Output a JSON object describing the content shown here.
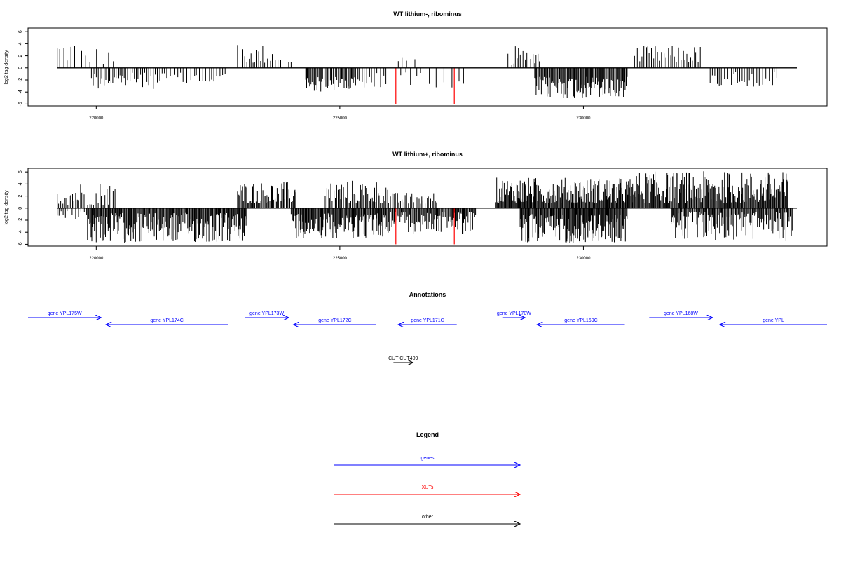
{
  "colors": {
    "gene": "#0000ff",
    "xut": "#ff0000",
    "other": "#000000",
    "bar": "#000000",
    "highlight": "#ff0000"
  },
  "chart_data": [
    {
      "type": "bar",
      "title": "WT lithium-, ribominus",
      "ylabel": "log2 tag density",
      "xlim": [
        218600,
        235000
      ],
      "ylim": [
        -6.3,
        6.6
      ],
      "xticks": [
        220000,
        225000,
        230000
      ],
      "yticks": [
        -6,
        -4,
        -2,
        0,
        2,
        4,
        6
      ],
      "grid": false,
      "highlight_bars": [
        {
          "x": 226150,
          "value": -6
        },
        {
          "x": 227350,
          "value": -6
        }
      ],
      "segments": [
        {
          "from": 219200,
          "to": 219600,
          "sign": 1,
          "min": 0.8,
          "max": 5.0,
          "step": 60
        },
        {
          "from": 219700,
          "to": 220500,
          "sign": 1,
          "min": 0.5,
          "max": 3.6,
          "step": 110
        },
        {
          "from": 219900,
          "to": 221400,
          "sign": -1,
          "min": 0.8,
          "max": 3.5,
          "step": 40
        },
        {
          "from": 221400,
          "to": 222700,
          "sign": -1,
          "min": 0.8,
          "max": 3.2,
          "step": 60
        },
        {
          "from": 222900,
          "to": 223800,
          "sign": 1,
          "min": 0.7,
          "max": 3.9,
          "step": 45
        },
        {
          "from": 223950,
          "to": 224050,
          "sign": 1,
          "min": 0.8,
          "max": 1.1,
          "step": 50
        },
        {
          "from": 224300,
          "to": 225400,
          "sign": -1,
          "min": 1.5,
          "max": 4.0,
          "step": 25
        },
        {
          "from": 225400,
          "to": 226000,
          "sign": -1,
          "min": 0.8,
          "max": 4.0,
          "step": 55
        },
        {
          "from": 226200,
          "to": 226550,
          "sign": 1,
          "min": 0.8,
          "max": 1.8,
          "step": 80
        },
        {
          "from": 226250,
          "to": 227600,
          "sign": -1,
          "min": 0.7,
          "max": 3.3,
          "step": 130
        },
        {
          "from": 228450,
          "to": 229100,
          "sign": 1,
          "min": 0.5,
          "max": 3.6,
          "step": 40
        },
        {
          "from": 229000,
          "to": 230900,
          "sign": -1,
          "min": 1.5,
          "max": 5.2,
          "step": 18
        },
        {
          "from": 231050,
          "to": 232400,
          "sign": 1,
          "min": 0.8,
          "max": 3.7,
          "step": 40
        },
        {
          "from": 232600,
          "to": 234000,
          "sign": -1,
          "min": 0.6,
          "max": 3.2,
          "step": 55
        }
      ]
    },
    {
      "type": "bar",
      "title": "WT lithium+, ribominus",
      "ylabel": "log2 tag density",
      "xlim": [
        218600,
        235000
      ],
      "ylim": [
        -6.3,
        6.6
      ],
      "xticks": [
        220000,
        225000,
        230000
      ],
      "yticks": [
        -6,
        -4,
        -2,
        0,
        2,
        4,
        6
      ],
      "grid": false,
      "highlight_bars": [
        {
          "x": 226150,
          "value": -6
        },
        {
          "x": 227350,
          "value": -6
        }
      ],
      "segments": [
        {
          "from": 219200,
          "to": 220400,
          "sign": 1,
          "min": 0.5,
          "max": 4.5,
          "step": 35
        },
        {
          "from": 219200,
          "to": 219800,
          "sign": -1,
          "min": 0.5,
          "max": 2.2,
          "step": 60
        },
        {
          "from": 219800,
          "to": 223100,
          "sign": -1,
          "min": 0.8,
          "max": 5.8,
          "step": 16
        },
        {
          "from": 222900,
          "to": 224100,
          "sign": 1,
          "min": 0.8,
          "max": 4.4,
          "step": 22
        },
        {
          "from": 224000,
          "to": 226000,
          "sign": -1,
          "min": 0.8,
          "max": 5.0,
          "step": 16
        },
        {
          "from": 224700,
          "to": 226000,
          "sign": 1,
          "min": 0.8,
          "max": 4.7,
          "step": 28
        },
        {
          "from": 226000,
          "to": 227000,
          "sign": 1,
          "min": 0.6,
          "max": 2.6,
          "step": 35
        },
        {
          "from": 226000,
          "to": 227800,
          "sign": -1,
          "min": 0.6,
          "max": 4.3,
          "step": 18
        },
        {
          "from": 228200,
          "to": 231000,
          "sign": 1,
          "min": 0.8,
          "max": 5.1,
          "step": 15
        },
        {
          "from": 228700,
          "to": 230900,
          "sign": -1,
          "min": 1.0,
          "max": 5.8,
          "step": 15
        },
        {
          "from": 231000,
          "to": 234200,
          "sign": 1,
          "min": 0.8,
          "max": 6.1,
          "step": 16
        },
        {
          "from": 231800,
          "to": 234300,
          "sign": -1,
          "min": 0.6,
          "max": 5.4,
          "step": 18
        }
      ]
    }
  ],
  "annotations": {
    "title": "Annotations",
    "xlim": [
      218600,
      235000
    ],
    "features": [
      {
        "label": "gene YPL175W",
        "type": "gene",
        "from": 218600,
        "to": 220100,
        "row": 0
      },
      {
        "label": "gene YPL174C",
        "type": "gene",
        "from": 222700,
        "to": 220200,
        "row": 1
      },
      {
        "label": "gene YPL173W",
        "type": "gene",
        "from": 223050,
        "to": 223950,
        "row": 0
      },
      {
        "label": "gene YPL172C",
        "type": "gene",
        "from": 225750,
        "to": 224050,
        "row": 1
      },
      {
        "label": "gene YPL171C",
        "type": "gene",
        "from": 227400,
        "to": 226200,
        "row": 1
      },
      {
        "label": "gene YPL170W",
        "type": "gene",
        "from": 228350,
        "to": 228800,
        "row": 0
      },
      {
        "label": "gene YPL169C",
        "type": "gene",
        "from": 230850,
        "to": 229050,
        "row": 1
      },
      {
        "label": "gene YPL168W",
        "type": "gene",
        "from": 231350,
        "to": 232650,
        "row": 0
      },
      {
        "label": "gene YPL",
        "type": "gene",
        "from": 235000,
        "to": 232800,
        "row": 1
      },
      {
        "label": "CUT CUT409",
        "type": "other",
        "from": 226100,
        "to": 226500,
        "row": 2
      }
    ]
  },
  "legend": {
    "title": "Legend",
    "items": [
      {
        "label": "genes",
        "type": "gene"
      },
      {
        "label": "XUTs",
        "type": "xut"
      },
      {
        "label": "other",
        "type": "other"
      }
    ]
  }
}
